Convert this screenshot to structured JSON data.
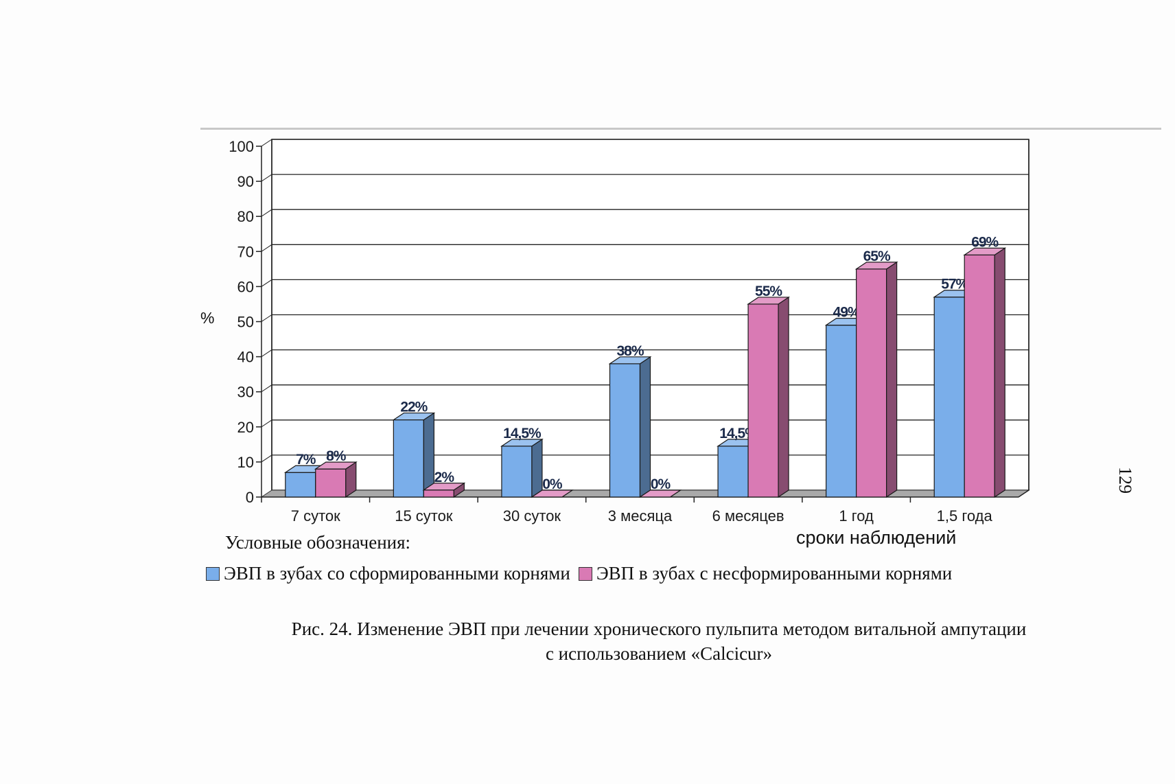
{
  "page_number": "129",
  "y_unit": "%",
  "legend": {
    "heading": "Условные обозначения:",
    "items": [
      {
        "label": "ЭВП в зубах со сформированными корнями",
        "color": "#7aaeea"
      },
      {
        "label": "ЭВП в зубах с несформированными корнями",
        "color": "#d97ab4"
      }
    ]
  },
  "caption": {
    "line1": "Рис. 24.  Изменение ЭВП при лечении хронического пульпита методом витальной ампутации",
    "line2": "с использованием «Calcicur»"
  },
  "chart_data": {
    "type": "bar",
    "title": "",
    "xlabel": "сроки наблюдений",
    "ylabel": "%",
    "ylim": [
      0,
      100
    ],
    "yticks": [
      0,
      10,
      20,
      30,
      40,
      50,
      60,
      70,
      80,
      90,
      100
    ],
    "grid": true,
    "legend_position": "bottom",
    "categories": [
      "7 суток",
      "15 суток",
      "30 суток",
      "3 месяца",
      "6 месяцев",
      "1 год",
      "1,5 года"
    ],
    "series": [
      {
        "name": "ЭВП в зубах со сформированными корнями",
        "color": "#7aaeea",
        "values": [
          7,
          22,
          14.5,
          38,
          14.5,
          49,
          57
        ],
        "labels": [
          "7%",
          "22%",
          "14,5%",
          "38%",
          "14,5%",
          "49%",
          "57%"
        ]
      },
      {
        "name": "ЭВП в зубах с несформированными корнями",
        "color": "#d97ab4",
        "values": [
          8,
          2,
          0,
          0,
          55,
          65,
          69
        ],
        "labels": [
          "8%",
          "2%",
          "0%",
          "0%",
          "55%",
          "65%",
          "69%"
        ]
      }
    ]
  }
}
